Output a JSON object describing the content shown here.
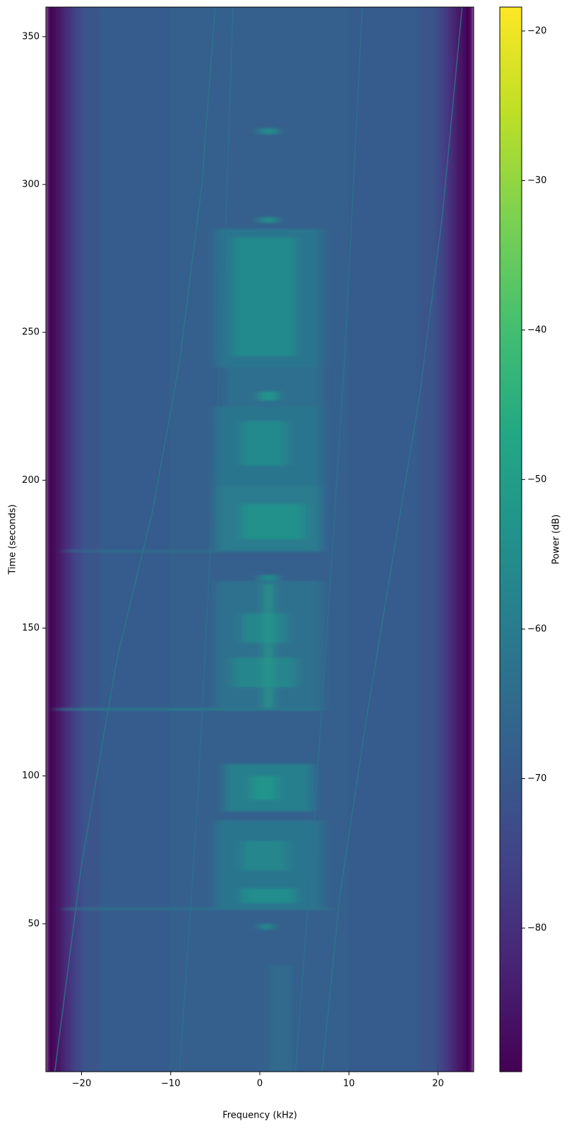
{
  "chart_data": {
    "type": "spectrogram",
    "xlabel": "Frequency (kHz)",
    "ylabel": "Time (seconds)",
    "colorbar_label": "Power (dB)",
    "colormap": "viridis",
    "xlim": [
      -24,
      24
    ],
    "ylim": [
      0,
      360
    ],
    "clim": [
      -89.6,
      -18.4
    ],
    "xticks": [
      {
        "value": -20,
        "label": "−20"
      },
      {
        "value": -10,
        "label": "−10"
      },
      0,
      10,
      20
    ],
    "yticks": [
      50,
      100,
      150,
      200,
      250,
      300,
      350
    ],
    "cticks": [
      {
        "value": -20,
        "label": "−20"
      },
      {
        "value": -30,
        "label": "−30"
      },
      {
        "value": -40,
        "label": "−40"
      },
      {
        "value": -50,
        "label": "−50"
      },
      {
        "value": -60,
        "label": "−60"
      },
      {
        "value": -70,
        "label": "−70"
      },
      {
        "value": -80,
        "label": "−80"
      }
    ],
    "background": {
      "edges": [
        -24,
        -23,
        -22,
        -21,
        -20,
        -18,
        -10,
        10,
        18,
        20,
        21,
        22,
        23,
        24
      ],
      "values": [
        -89,
        -86,
        -80,
        -75,
        -71,
        -69,
        -68,
        -69,
        -71,
        -75,
        -80,
        -86,
        -89
      ]
    },
    "bursts": [
      {
        "t": [
          238,
          285
        ],
        "f": [
          -5,
          7
        ],
        "power": -62
      },
      {
        "t": [
          242,
          282
        ],
        "f": [
          -3,
          4
        ],
        "power": -56
      },
      {
        "t": [
          225,
          238
        ],
        "f": [
          -4,
          7
        ],
        "power": -64
      },
      {
        "t": [
          198,
          225
        ],
        "f": [
          -5,
          7
        ],
        "power": -62
      },
      {
        "t": [
          205,
          220
        ],
        "f": [
          -2,
          3
        ],
        "power": -56
      },
      {
        "t": [
          176,
          198
        ],
        "f": [
          -5,
          7
        ],
        "power": -60
      },
      {
        "t": [
          180,
          192
        ],
        "f": [
          -2,
          5
        ],
        "power": -54
      },
      {
        "t": [
          123,
          166
        ],
        "f": [
          -5,
          7
        ],
        "power": -63
      },
      {
        "t": [
          130,
          140
        ],
        "f": [
          -3,
          4
        ],
        "power": -57
      },
      {
        "t": [
          145,
          155
        ],
        "f": [
          -2,
          3
        ],
        "power": -57
      },
      {
        "t": [
          123,
          165
        ],
        "f": [
          0.6,
          1.3
        ],
        "power": -50
      },
      {
        "t": [
          88,
          104
        ],
        "f": [
          -4,
          6
        ],
        "power": -59
      },
      {
        "t": [
          92,
          100
        ],
        "f": [
          -1,
          2
        ],
        "power": -53
      },
      {
        "t": [
          55,
          85
        ],
        "f": [
          -5,
          7
        ],
        "power": -62
      },
      {
        "t": [
          57,
          62
        ],
        "f": [
          -2,
          4
        ],
        "power": -55
      },
      {
        "t": [
          68,
          78
        ],
        "f": [
          -2,
          3
        ],
        "power": -57
      },
      {
        "t": [
          317,
          319
        ],
        "f": [
          0,
          2
        ],
        "power": -55
      },
      {
        "t": [
          287,
          289
        ],
        "f": [
          0,
          2
        ],
        "power": -55
      },
      {
        "t": [
          227,
          230
        ],
        "f": [
          0,
          2
        ],
        "power": -53
      },
      {
        "t": [
          166,
          168
        ],
        "f": [
          0,
          2
        ],
        "power": -56
      },
      {
        "t": [
          48,
          50
        ],
        "f": [
          0,
          1.5
        ],
        "power": -56
      },
      {
        "t": [
          0,
          36
        ],
        "f": [
          1.6,
          1.9
        ],
        "power": -55
      },
      {
        "t": [
          0,
          36
        ],
        "f": [
          2.9,
          3.2
        ],
        "power": -56
      },
      {
        "t": [
          122.3,
          122.8
        ],
        "f": [
          -23,
          7
        ],
        "power": -55
      },
      {
        "t": [
          54.8,
          55.3
        ],
        "f": [
          -22,
          8
        ],
        "power": -60
      },
      {
        "t": [
          175.8,
          176.3
        ],
        "f": [
          -22,
          7
        ],
        "power": -62
      }
    ],
    "tones": [
      {
        "f": [
          -23,
          -20,
          -16,
          -12,
          -9,
          -6.5,
          -5
        ],
        "t": [
          0,
          70,
          140,
          190,
          240,
          300,
          360
        ],
        "power": -61
      },
      {
        "f": [
          7,
          9,
          12,
          15,
          18,
          20.5,
          22.7
        ],
        "t": [
          0,
          60,
          120,
          175,
          230,
          290,
          360
        ],
        "power": -62
      },
      {
        "f": [
          4,
          6,
          8,
          9.5,
          10.5,
          11.5
        ],
        "t": [
          0,
          80,
          170,
          240,
          300,
          360
        ],
        "power": -63
      },
      {
        "f": [
          -9,
          -7,
          -5.5,
          -4,
          -3
        ],
        "t": [
          0,
          90,
          180,
          270,
          360
        ],
        "power": -64
      }
    ]
  }
}
